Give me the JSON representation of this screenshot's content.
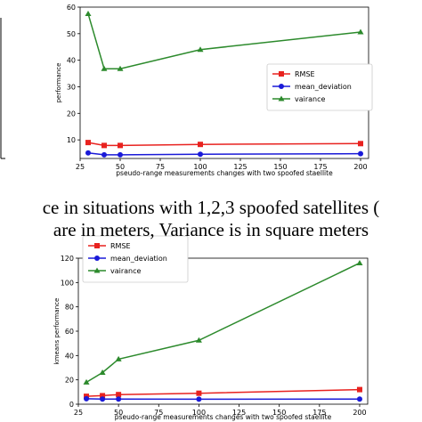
{
  "captions": {
    "line1": "ce in situations with 1,2,3 spoofed satellites (",
    "line2": "are in meters, Variance is in square meters"
  },
  "chart_data": [
    {
      "type": "line",
      "xlabel": "pseudo-range measurements changes with two spoofed staellite",
      "ylabel": "performance",
      "xticks": [
        25,
        50,
        75,
        100,
        125,
        150,
        175,
        200
      ],
      "yticks": [
        10,
        20,
        30,
        40,
        50,
        60
      ],
      "xlim": [
        25,
        205
      ],
      "ylim": [
        3,
        60
      ],
      "legend_placement": "center-right",
      "x": [
        30,
        40,
        50,
        100,
        200
      ],
      "series": [
        {
          "name": "RMSE",
          "color": "#e8221f",
          "marker": "square",
          "values": [
            9.0,
            7.9,
            7.9,
            8.3,
            8.6
          ]
        },
        {
          "name": "mean_deviation",
          "color": "#1a1ad8",
          "marker": "circle",
          "values": [
            5.1,
            4.4,
            4.4,
            4.6,
            4.8
          ]
        },
        {
          "name": "vairance",
          "color": "#2c8a2c",
          "marker": "triangle",
          "values": [
            57.5,
            36.8,
            36.8,
            44.0,
            50.6
          ]
        }
      ]
    },
    {
      "type": "line",
      "xlabel": "pseudo-range measurements changes with two spoofed staellite",
      "ylabel": "kmeans performance",
      "xticks": [
        25,
        50,
        75,
        100,
        125,
        150,
        175,
        200
      ],
      "yticks": [
        0,
        20,
        40,
        60,
        80,
        100,
        120
      ],
      "xlim": [
        25,
        205
      ],
      "ylim": [
        0,
        120
      ],
      "legend_placement": "top-left",
      "x": [
        30,
        40,
        50,
        100,
        200
      ],
      "series": [
        {
          "name": "RMSE",
          "color": "#e8221f",
          "marker": "square",
          "values": [
            6.5,
            7.0,
            7.9,
            9.0,
            12.0
          ]
        },
        {
          "name": "mean_deviation",
          "color": "#1a1ad8",
          "marker": "circle",
          "values": [
            4.5,
            4.2,
            4.2,
            4.1,
            4.2
          ]
        },
        {
          "name": "vairance",
          "color": "#2c8a2c",
          "marker": "triangle",
          "values": [
            18.0,
            26.0,
            37.0,
            52.5,
            116.0
          ]
        }
      ]
    }
  ]
}
